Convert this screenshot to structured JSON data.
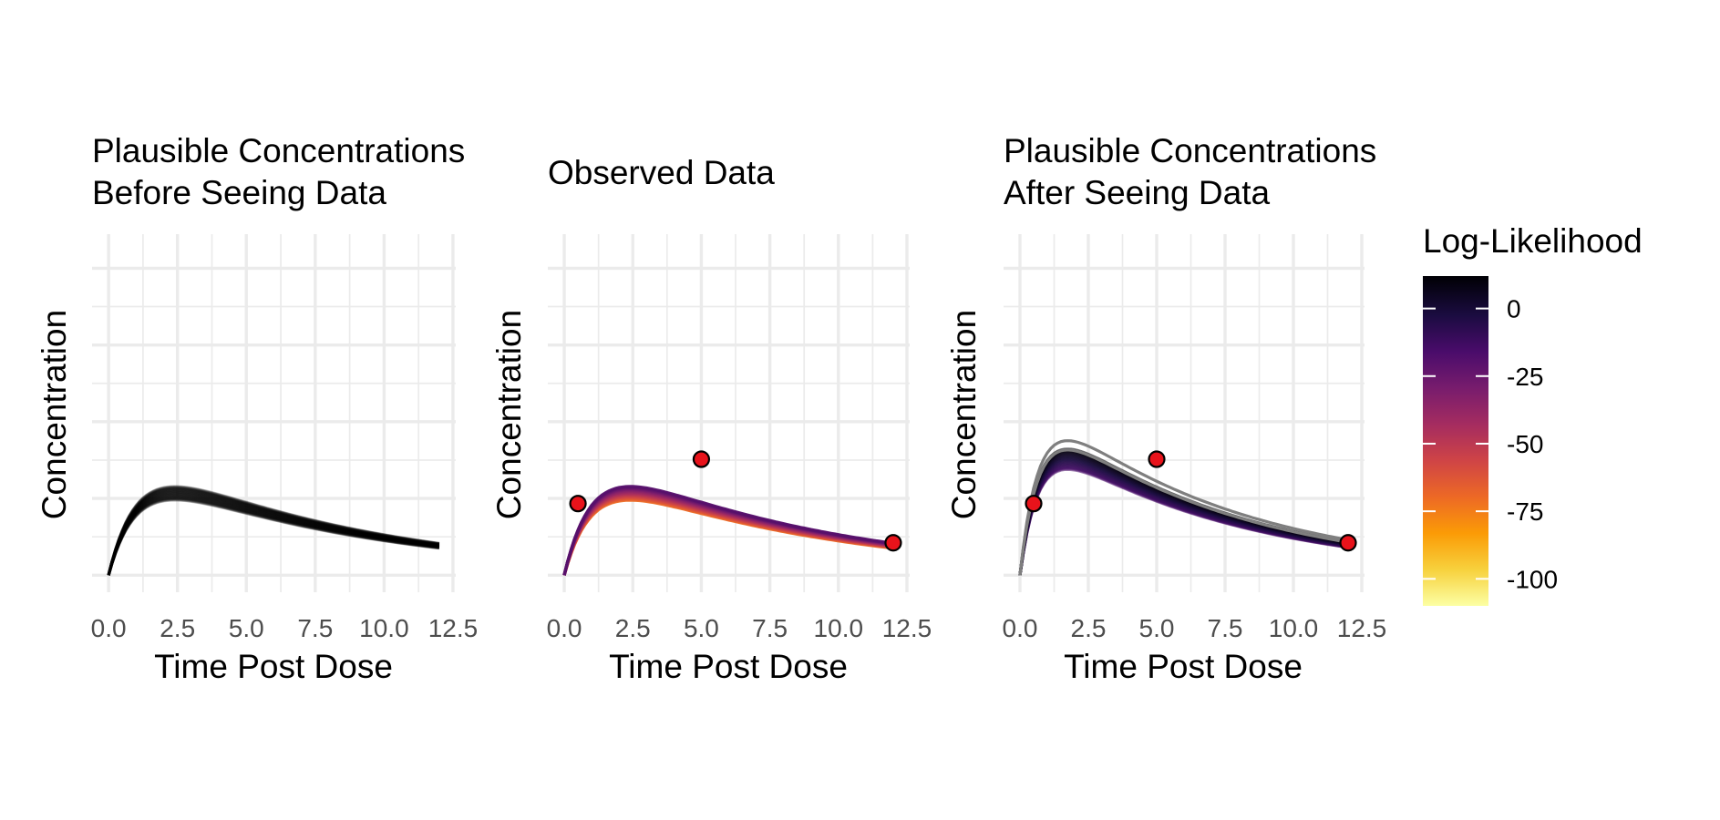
{
  "chart_data": [
    {
      "type": "line",
      "title": [
        "Plausible Concentrations",
        "Before Seeing Data"
      ],
      "xlabel": "Time Post Dose",
      "ylabel": "Concentration",
      "xlim": [
        -0.6,
        12.6
      ],
      "ylim": [
        -0.05,
        1.0
      ],
      "x_ticks": [
        "0.0",
        "2.5",
        "5.0",
        "7.5",
        "10.0",
        "12.5"
      ],
      "x_tick_values": [
        0,
        2.5,
        5,
        7.5,
        10,
        12.5
      ],
      "y_tick_labels_shown": false,
      "grid": true,
      "series_color": "#000000",
      "curve_family": {
        "ka": 1.0,
        "ke": 0.12,
        "peak_value": 0.24,
        "peak_spread": 0.02,
        "n_curves": 40,
        "x_max": 12
      }
    },
    {
      "type": "line",
      "title": [
        "Observed Data"
      ],
      "xlabel": "Time Post Dose",
      "ylabel": "Concentration",
      "xlim": [
        -0.6,
        12.6
      ],
      "ylim": [
        -0.05,
        1.0
      ],
      "x_ticks": [
        "0.0",
        "2.5",
        "5.0",
        "7.5",
        "10.0",
        "12.5"
      ],
      "x_tick_values": [
        0,
        2.5,
        5,
        7.5,
        10,
        12.5
      ],
      "y_tick_labels_shown": false,
      "grid": true,
      "points": [
        {
          "x": 0.5,
          "y": 0.21
        },
        {
          "x": 5.0,
          "y": 0.34
        },
        {
          "x": 12.0,
          "y": 0.095
        }
      ],
      "point_color": "#e8131b",
      "curve_family": {
        "ka": 1.0,
        "ke": 0.12,
        "peak_value": 0.24,
        "peak_spread": 0.02,
        "n_curves": 14,
        "x_max": 12
      }
    },
    {
      "type": "line",
      "title": [
        "Plausible Concentrations",
        "After Seeing Data"
      ],
      "xlabel": "Time Post Dose",
      "ylabel": "Concentration",
      "xlim": [
        -0.6,
        12.6
      ],
      "ylim": [
        -0.05,
        1.0
      ],
      "x_ticks": [
        "0.0",
        "2.5",
        "5.0",
        "7.5",
        "10.0",
        "12.5"
      ],
      "x_tick_values": [
        0,
        2.5,
        5,
        7.5,
        10,
        12.5
      ],
      "y_tick_labels_shown": false,
      "grid": true,
      "points": [
        {
          "x": 0.5,
          "y": 0.21
        },
        {
          "x": 5.0,
          "y": 0.34
        },
        {
          "x": 12.0,
          "y": 0.095
        }
      ],
      "point_color": "#e8131b",
      "curve_family": {
        "ka": 1.5,
        "ke": 0.14,
        "peak_value": 0.34,
        "peak_spread": 0.03,
        "n_curves": 30,
        "x_max": 12
      }
    }
  ],
  "legend": {
    "title": "Log-Likelihood",
    "placement": "right",
    "range": [
      -110,
      12
    ],
    "ticks": [
      {
        "value": 0,
        "label": "0"
      },
      {
        "value": -25,
        "label": "-25"
      },
      {
        "value": -50,
        "label": "-50"
      },
      {
        "value": -75,
        "label": "-75"
      },
      {
        "value": -100,
        "label": "-100"
      }
    ],
    "colors": [
      "#fcffa4",
      "#f7d13d",
      "#fb9b06",
      "#ed6925",
      "#cf4446",
      "#a52c60",
      "#781c6d",
      "#4a0c6b",
      "#1b0c41",
      "#000004"
    ]
  }
}
